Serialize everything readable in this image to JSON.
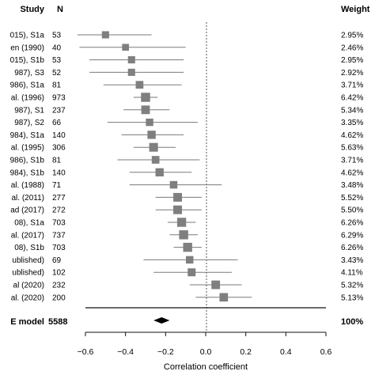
{
  "chart_data": {
    "type": "forest",
    "headers": {
      "study": "Study",
      "n": "N",
      "weight": "Weight"
    },
    "xlabel": "Correlation coefficient",
    "xlim": [
      -0.6,
      0.6
    ],
    "xticks": [
      -0.6,
      -0.4,
      -0.2,
      0.0,
      0.2,
      0.4,
      0.6
    ],
    "xtick_labels": [
      "−0.6",
      "−0.4",
      "−0.2",
      "0.0",
      "0.2",
      "0.4",
      "0.6"
    ],
    "reference_line": 0.0,
    "studies": [
      {
        "label": "015), S1a",
        "n": "53",
        "r": -0.5,
        "ci": [
          -0.64,
          -0.27
        ],
        "weight": "2.95%"
      },
      {
        "label": "en (1990)",
        "n": "40",
        "r": -0.4,
        "ci": [
          -0.63,
          -0.1
        ],
        "weight": "2.46%"
      },
      {
        "label": "015), S1b",
        "n": "53",
        "r": -0.37,
        "ci": [
          -0.58,
          -0.11
        ],
        "weight": "2.95%"
      },
      {
        "label": "987), S3",
        "n": "52",
        "r": -0.37,
        "ci": [
          -0.58,
          -0.11
        ],
        "weight": "2.92%"
      },
      {
        "label": "986), S1a",
        "n": "81",
        "r": -0.33,
        "ci": [
          -0.51,
          -0.12
        ],
        "weight": "3.71%"
      },
      {
        "label": "al. (1996)",
        "n": "973",
        "r": -0.3,
        "ci": [
          -0.36,
          -0.24
        ],
        "weight": "6.42%"
      },
      {
        "label": "987), S1",
        "n": "237",
        "r": -0.3,
        "ci": [
          -0.41,
          -0.18
        ],
        "weight": "5.34%"
      },
      {
        "label": "987), S2",
        "n": "66",
        "r": -0.28,
        "ci": [
          -0.49,
          -0.04
        ],
        "weight": "3.35%"
      },
      {
        "label": "984), S1a",
        "n": "140",
        "r": -0.27,
        "ci": [
          -0.42,
          -0.11
        ],
        "weight": "4.62%"
      },
      {
        "label": "al. (1995)",
        "n": "306",
        "r": -0.26,
        "ci": [
          -0.36,
          -0.15
        ],
        "weight": "5.63%"
      },
      {
        "label": "986), S1b",
        "n": "81",
        "r": -0.25,
        "ci": [
          -0.44,
          -0.03
        ],
        "weight": "3.71%"
      },
      {
        "label": "984), S1b",
        "n": "140",
        "r": -0.23,
        "ci": [
          -0.38,
          -0.07
        ],
        "weight": "4.62%"
      },
      {
        "label": "al. (1988)",
        "n": "71",
        "r": -0.16,
        "ci": [
          -0.38,
          0.08
        ],
        "weight": "3.48%"
      },
      {
        "label": "al. (2011)",
        "n": "277",
        "r": -0.14,
        "ci": [
          -0.25,
          -0.02
        ],
        "weight": "5.52%"
      },
      {
        "label": "ad (2017)",
        "n": "272",
        "r": -0.14,
        "ci": [
          -0.25,
          -0.02
        ],
        "weight": "5.50%"
      },
      {
        "label": "08), S1a",
        "n": "703",
        "r": -0.12,
        "ci": [
          -0.19,
          -0.05
        ],
        "weight": "6.26%"
      },
      {
        "label": "al. (2017)",
        "n": "737",
        "r": -0.11,
        "ci": [
          -0.18,
          -0.04
        ],
        "weight": "6.29%"
      },
      {
        "label": "08), S1b",
        "n": "703",
        "r": -0.09,
        "ci": [
          -0.16,
          -0.02
        ],
        "weight": "6.26%"
      },
      {
        "label": "ublished)",
        "n": "69",
        "r": -0.08,
        "ci": [
          -0.31,
          0.16
        ],
        "weight": "3.43%"
      },
      {
        "label": "ublished)",
        "n": "102",
        "r": -0.07,
        "ci": [
          -0.26,
          0.13
        ],
        "weight": "4.11%"
      },
      {
        "label": "al (2020)",
        "n": "232",
        "r": 0.05,
        "ci": [
          -0.08,
          0.18
        ],
        "weight": "5.32%"
      },
      {
        "label": "al. (2020)",
        "n": "200",
        "r": 0.09,
        "ci": [
          -0.05,
          0.23
        ],
        "weight": "5.13%"
      }
    ],
    "summary": {
      "label": "E model",
      "n": "5588",
      "r": -0.22,
      "ci": [
        -0.26,
        -0.18
      ],
      "weight": "100%"
    }
  }
}
